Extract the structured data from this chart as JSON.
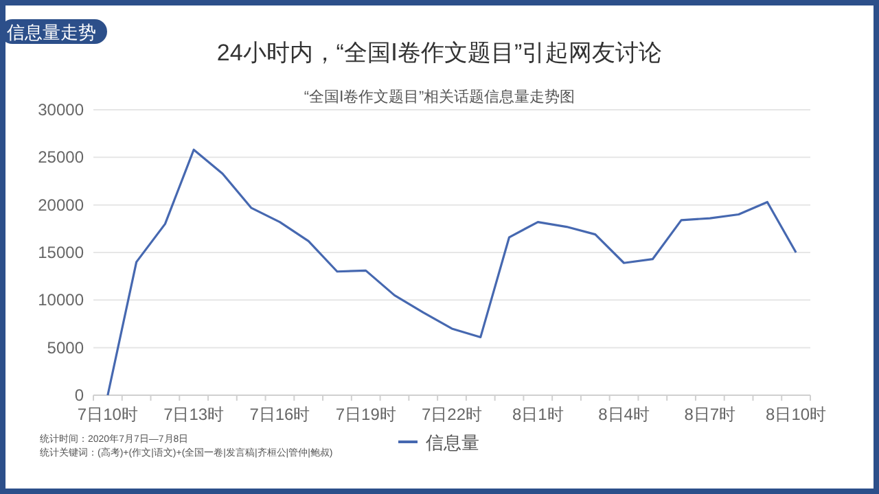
{
  "chart_data": {
    "type": "line",
    "title": "24小时内，“全国Ⅰ卷作文题目”引起网友讨论",
    "subtitle": "“全国Ⅰ卷作文题目”相关话题信息量走势图",
    "categories": [
      "7日10时",
      null,
      null,
      "7日13时",
      null,
      null,
      "7日16时",
      null,
      null,
      "7日19时",
      null,
      null,
      "7日22时",
      null,
      null,
      "8日1时",
      null,
      null,
      "8日4时",
      null,
      null,
      "8日7时",
      null,
      null,
      "8日10时"
    ],
    "series": [
      {
        "name": "信息量",
        "color": "#4668b0",
        "values": [
          0,
          14000,
          18000,
          25800,
          23300,
          19700,
          18200,
          16200,
          13000,
          13100,
          10500,
          8700,
          7000,
          6100,
          16600,
          18200,
          17700,
          16900,
          13900,
          14300,
          18400,
          18600,
          19000,
          20300,
          15000
        ]
      }
    ],
    "ylim": [
      0,
      30000
    ],
    "yticks": [
      0,
      5000,
      10000,
      15000,
      20000,
      25000,
      30000
    ],
    "grid": "y",
    "legend": "bottom",
    "annotations": [
      "信息量走势",
      "统计时间：2020年7月7日—7月8日",
      "统计关键词：(高考)+(作文|语文)+(全国一卷|发言稿|齐桓公|管仲|鲍叔)"
    ]
  }
}
